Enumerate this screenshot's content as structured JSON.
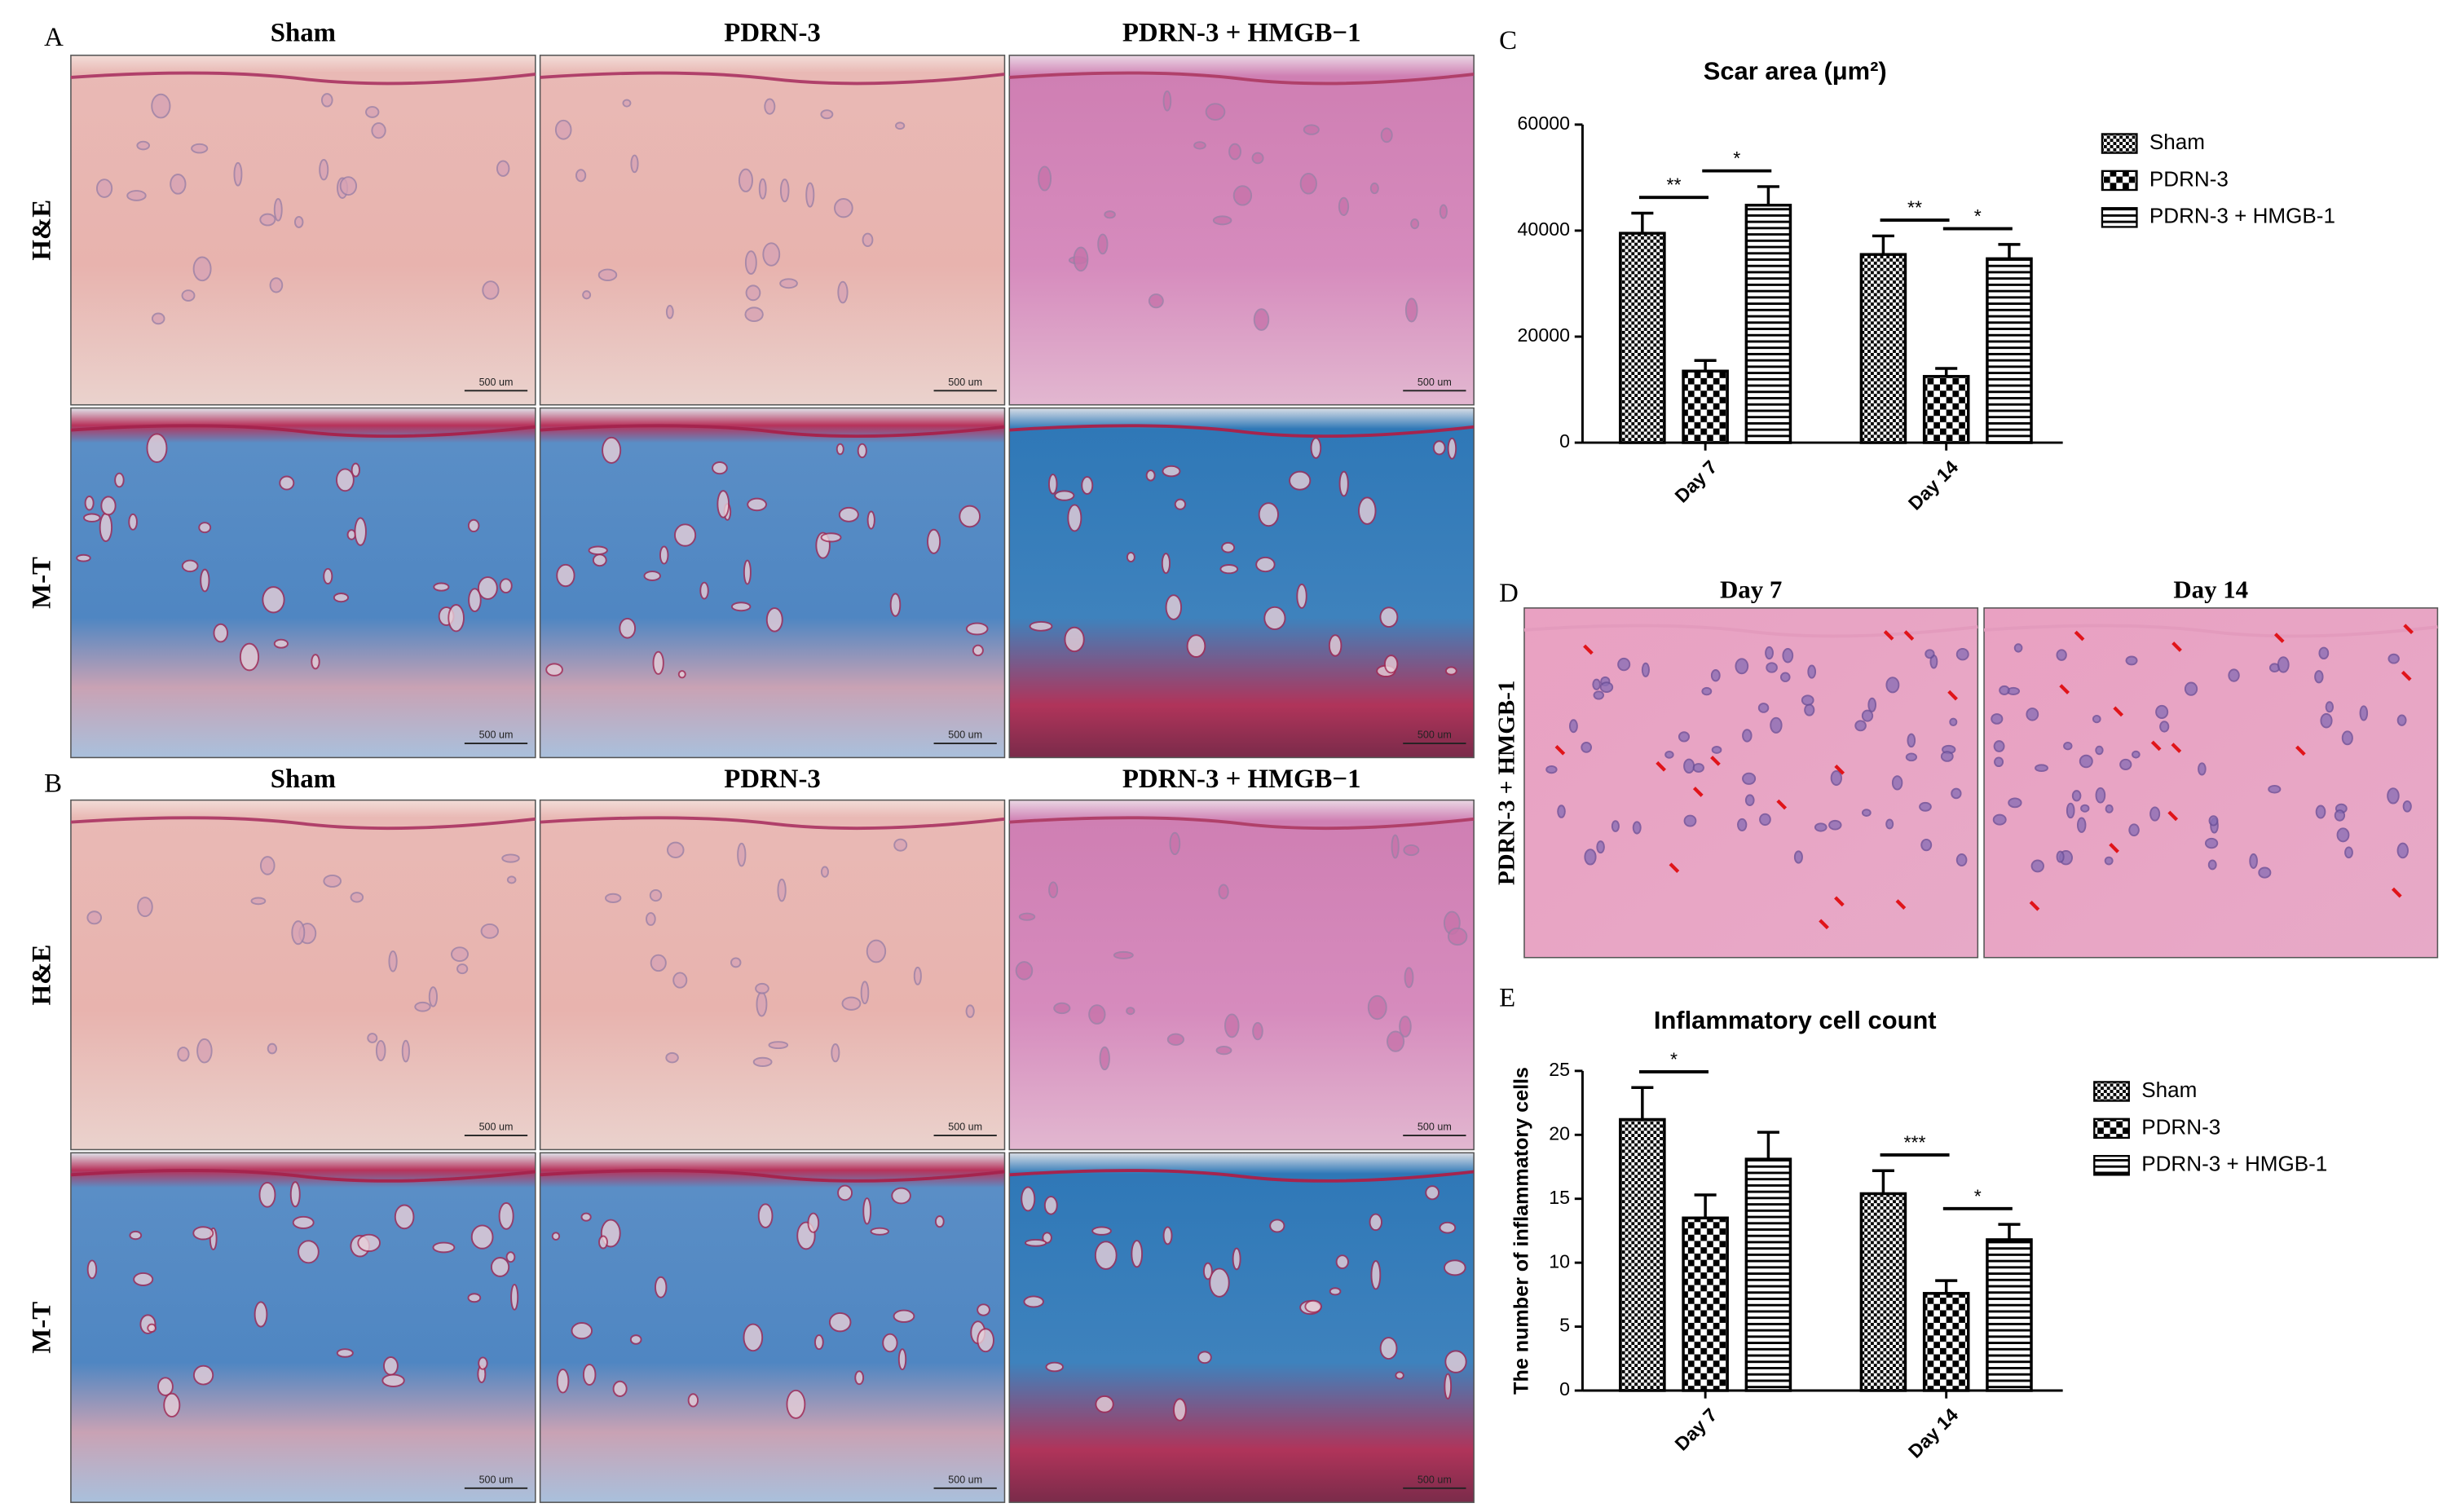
{
  "panels": {
    "A": {
      "label": "A",
      "columns": [
        "Sham",
        "PDRN-3",
        "PDRN-3 + HMGB−1"
      ],
      "rows": [
        "H&E",
        "M-T"
      ],
      "scale_bar": "500 um"
    },
    "B": {
      "label": "B",
      "columns": [
        "Sham",
        "PDRN-3",
        "PDRN-3 + HMGB−1"
      ],
      "rows": [
        "H&E",
        "M-T"
      ],
      "scale_bar": "500 um"
    },
    "C": {
      "label": "C"
    },
    "D": {
      "label": "D",
      "columns": [
        "Day 7",
        "Day 14"
      ],
      "row": "PDRN-3 + HMGB-1"
    },
    "E": {
      "label": "E"
    }
  },
  "chart_data": [
    {
      "type": "bar",
      "title": "Scar area (μm²)",
      "categories": [
        "Day 7",
        "Day 14"
      ],
      "series": [
        {
          "name": "Sham",
          "pattern": "fine-check",
          "values": [
            39500,
            35500
          ],
          "errors": [
            3800,
            3500
          ]
        },
        {
          "name": "PDRN-3",
          "pattern": "coarse-check",
          "values": [
            13500,
            12500
          ],
          "errors": [
            2000,
            1500
          ]
        },
        {
          "name": "PDRN-3 + HMGB-1",
          "pattern": "stripes",
          "values": [
            44800,
            34700
          ],
          "errors": [
            3500,
            2700
          ]
        }
      ],
      "ylim": [
        0,
        60000
      ],
      "yticks": [
        0,
        20000,
        40000,
        60000
      ],
      "annotations": [
        {
          "text": "**",
          "category": 0,
          "between": [
            0,
            1
          ]
        },
        {
          "text": "*",
          "category": 0,
          "between": [
            1,
            2
          ]
        },
        {
          "text": "**",
          "category": 1,
          "between": [
            0,
            1
          ]
        },
        {
          "text": "*",
          "category": 1,
          "between": [
            1,
            2
          ]
        }
      ]
    },
    {
      "type": "bar",
      "title": "Inflammatory cell count",
      "y_label": "The number of inflammatory cells",
      "categories": [
        "Day 7",
        "Day 14"
      ],
      "series": [
        {
          "name": "Sham",
          "pattern": "fine-check",
          "values": [
            21.2,
            15.4
          ],
          "errors": [
            2.5,
            1.8
          ]
        },
        {
          "name": "PDRN-3",
          "pattern": "coarse-check",
          "values": [
            13.5,
            7.6
          ],
          "errors": [
            1.8,
            1.0
          ]
        },
        {
          "name": "PDRN-3 + HMGB-1",
          "pattern": "stripes",
          "values": [
            18.1,
            11.8
          ],
          "errors": [
            2.1,
            1.2
          ]
        }
      ],
      "ylim": [
        0,
        25
      ],
      "yticks": [
        0,
        5,
        10,
        15,
        20,
        25
      ],
      "annotations": [
        {
          "text": "*",
          "category": 0,
          "between": [
            0,
            1
          ]
        },
        {
          "text": "***",
          "category": 1,
          "between": [
            0,
            1
          ]
        },
        {
          "text": "*",
          "category": 1,
          "between": [
            1,
            2
          ]
        }
      ]
    }
  ]
}
